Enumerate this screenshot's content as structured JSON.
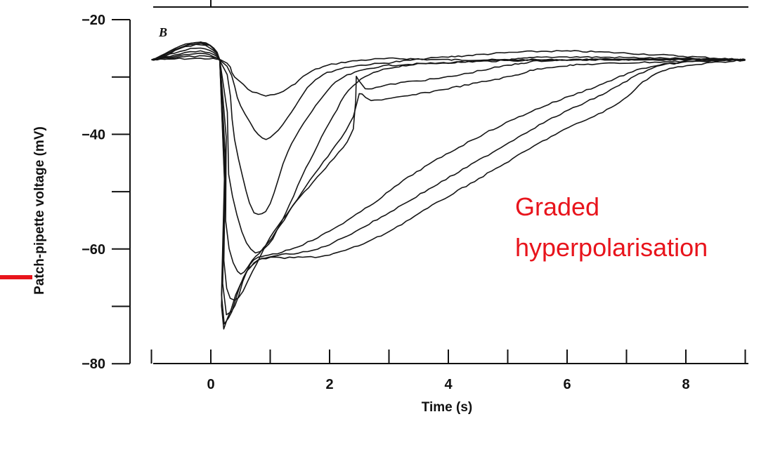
{
  "chart_data": {
    "type": "line",
    "panel_label": "B",
    "xlabel": "Time (s)",
    "ylabel": "Patch-pipette voltage (mV)",
    "xlim": [
      -1,
      9
    ],
    "ylim": [
      -80,
      -18
    ],
    "x_ticks": [
      0,
      2,
      4,
      6,
      8
    ],
    "y_ticks": [
      -20,
      -40,
      -60,
      -80
    ],
    "annotation": {
      "lines": [
        "Graded",
        "hyperpolarisation"
      ],
      "color": "#e8141c"
    },
    "marker_color": "#e8141c",
    "series": [
      {
        "x": [
          -1,
          0.15,
          0.4,
          0.7,
          1.0,
          1.3,
          1.7,
          2.2,
          3,
          4,
          6,
          9
        ],
        "y": [
          -27,
          -27,
          -30,
          -32.5,
          -33.2,
          -32,
          -29,
          -27.5,
          -26.8,
          -27,
          -27,
          -27
        ]
      },
      {
        "x": [
          -1,
          0.15,
          0.5,
          0.8,
          1.0,
          1.3,
          1.7,
          2.2,
          3,
          4,
          6,
          9
        ],
        "y": [
          -27,
          -27,
          -35,
          -40,
          -40.5,
          -37,
          -31,
          -28.5,
          -27.5,
          -26.5,
          -25.5,
          -27
        ]
      },
      {
        "x": [
          -1,
          0.15,
          0.4,
          0.65,
          0.8,
          1.0,
          1.3,
          1.7,
          2.1,
          2.5,
          3,
          4,
          5,
          6,
          9
        ],
        "y": [
          -27,
          -27,
          -41,
          -52,
          -54,
          -52,
          -43,
          -36,
          -31,
          -29,
          -28,
          -27.5,
          -27,
          -26.5,
          -27
        ]
      },
      {
        "x": [
          -1,
          0.15,
          0.3,
          0.6,
          0.9,
          1.2,
          1.6,
          2.0,
          2.4,
          3,
          4,
          6,
          9
        ],
        "y": [
          -27,
          -27,
          -47,
          -59,
          -60,
          -55,
          -46,
          -38,
          -31.5,
          -28.5,
          -27.5,
          -27,
          -27
        ]
      },
      {
        "x": [
          -1,
          0.15,
          0.25,
          0.45,
          0.7,
          1.1,
          1.6,
          2.1,
          2.4,
          2.5,
          2.7,
          3.2,
          4,
          5,
          6,
          9
        ],
        "y": [
          -27,
          -27,
          -55,
          -64,
          -62,
          -57,
          -49,
          -42,
          -37,
          -33,
          -34,
          -33.5,
          -32,
          -30,
          -28,
          -27
        ]
      },
      {
        "x": [
          -1,
          0.15,
          0.22,
          0.4,
          0.7,
          1.0,
          1.5,
          2.0,
          2.4,
          2.45,
          2.6,
          3.2,
          4,
          5,
          6,
          9
        ],
        "y": [
          -27,
          -27,
          -62,
          -69,
          -64,
          -58,
          -51,
          -45,
          -39,
          -30,
          -32,
          -31,
          -30,
          -28,
          -27,
          -27
        ]
      },
      {
        "x": [
          -1,
          0.15,
          0.2,
          0.35,
          0.6,
          0.8,
          1.2,
          1.8,
          2.6,
          3.4,
          4.4,
          5.4,
          6.4,
          7.5,
          9
        ],
        "y": [
          -27,
          -27,
          -66,
          -71,
          -64,
          -61.5,
          -60.5,
          -58,
          -53,
          -47,
          -41,
          -36,
          -32,
          -28,
          -27
        ]
      },
      {
        "x": [
          -1,
          0.15,
          0.18,
          0.3,
          0.55,
          0.8,
          1.2,
          1.8,
          2.6,
          3.6,
          4.6,
          5.6,
          6.6,
          7.6,
          9
        ],
        "y": [
          -27,
          -27,
          -68,
          -72,
          -65,
          -62,
          -61,
          -60,
          -56,
          -50,
          -44,
          -38,
          -33,
          -28,
          -27
        ]
      },
      {
        "x": [
          -1,
          0.15,
          0.18,
          0.28,
          0.5,
          0.8,
          1.4,
          2.0,
          2.8,
          3.8,
          4.8,
          5.8,
          6.8,
          7.6,
          9
        ],
        "y": [
          -27,
          -27,
          -70,
          -72,
          -66,
          -62,
          -61.5,
          -61,
          -58,
          -52,
          -46,
          -40,
          -35,
          -29,
          -27
        ]
      }
    ]
  }
}
